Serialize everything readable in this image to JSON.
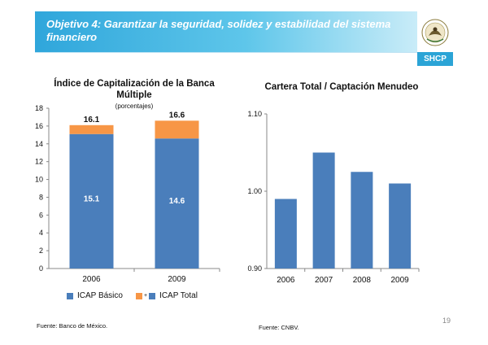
{
  "header": {
    "title": "Objetivo 4: Garantizar la seguridad, solidez y estabilidad del sistema financiero",
    "logo_label": "SHCP",
    "logo_icon": "mexico-coat-of-arms-icon"
  },
  "colors": {
    "banner": "#2fa6db",
    "basic": "#4a7ebb",
    "total": "#f79646",
    "bars_right": "#4a7ebb"
  },
  "chart_data": [
    {
      "type": "bar",
      "title": "Índice de Capitalización de la Banca Múltiple",
      "subtitle": "(porcentajes)",
      "categories": [
        "2006",
        "2009"
      ],
      "series": [
        {
          "name": "ICAP Básico",
          "values": [
            15.1,
            14.6
          ]
        },
        {
          "name": "ICAP Total",
          "values": [
            16.1,
            16.6
          ]
        }
      ],
      "ylim": [
        0,
        18
      ],
      "yticks": [
        "0",
        "2",
        "4",
        "6",
        "8",
        "10",
        "12",
        "14",
        "16",
        "18"
      ],
      "legend": "bottom",
      "source": "Fuente: Banco de México."
    },
    {
      "type": "bar",
      "title": "Cartera Total / Captación Menudeo",
      "categories": [
        "2006",
        "2007",
        "2008",
        "2009"
      ],
      "values": [
        0.99,
        1.05,
        1.025,
        1.01
      ],
      "ylim": [
        0.9,
        1.1
      ],
      "yticks": [
        "0.90",
        "1.00",
        "1.10"
      ],
      "source": "Fuente: CNBV."
    }
  ],
  "footer": {
    "page": "19"
  }
}
